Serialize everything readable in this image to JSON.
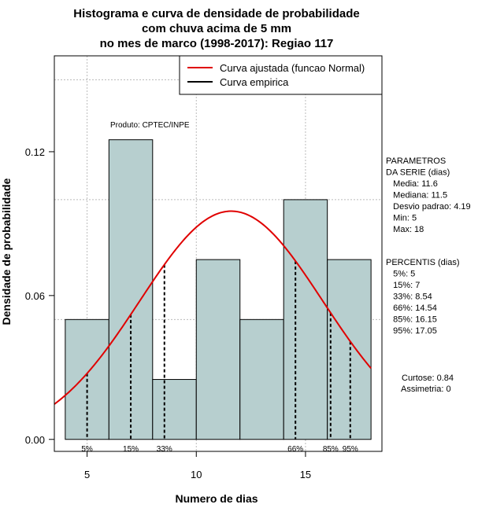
{
  "chart_data": {
    "type": "bar",
    "title_lines": [
      "Histograma e curva de densidade de probabilidade",
      "com chuva acima de 5 mm",
      "no mes de marco (1998-2017): Regiao 117"
    ],
    "xlabel": "Numero de dias",
    "ylabel": "Densidade de probabilidade",
    "xlim": [
      3.5,
      18.5
    ],
    "ylim": [
      -0.005,
      0.16
    ],
    "x_ticks": [
      5,
      10,
      15
    ],
    "y_ticks": [
      0.0,
      0.06,
      0.12
    ],
    "y_tick_labels": [
      "0.00",
      "0.06",
      "0.12"
    ],
    "grid_x": [
      5,
      10,
      15
    ],
    "grid_y": [
      0.05,
      0.1,
      0.15
    ],
    "bins": [
      {
        "start": 4,
        "end": 6,
        "density": 0.05
      },
      {
        "start": 6,
        "end": 8,
        "density": 0.125
      },
      {
        "start": 8,
        "end": 10,
        "density": 0.025
      },
      {
        "start": 10,
        "end": 12,
        "density": 0.075
      },
      {
        "start": 12,
        "end": 14,
        "density": 0.05
      },
      {
        "start": 14,
        "end": 16,
        "density": 0.1
      },
      {
        "start": 16,
        "end": 18,
        "density": 0.075
      }
    ],
    "normal_curve": {
      "mean": 11.6,
      "sd": 4.19,
      "x_range": [
        3.5,
        18
      ]
    },
    "percentile_lines": [
      {
        "label": "5%",
        "x": 5
      },
      {
        "label": "15%",
        "x": 7
      },
      {
        "label": "33%",
        "x": 8.54
      },
      {
        "label": "66%",
        "x": 14.54
      },
      {
        "label": "85%",
        "x": 16.15
      },
      {
        "label": "95%",
        "x": 17.05
      }
    ],
    "legend": [
      {
        "label": "Curva ajustada (funcao Normal)",
        "color": "#e00000"
      },
      {
        "label": "Curva empirica",
        "color": "#000000"
      }
    ],
    "legend_position": "top-right",
    "annotation": "Produto: CPTEC/INPE",
    "bar_color": "#b7cfcf",
    "curve_color": "#e00000"
  },
  "side_panel": {
    "params_lines": [
      "PARAMETROS",
      "DA SERIE (dias)",
      "   Media: 11.6",
      "   Mediana: 11.5",
      "   Desvio padrao: 4.19",
      "   Min: 5",
      "   Max: 18"
    ],
    "percentis_lines": [
      "PERCENTIS (dias)",
      "   5%: 5",
      "   15%: 7",
      "   33%: 8.54",
      "   66%: 14.54",
      "   85%: 16.15",
      "   95%: 17.05"
    ],
    "curtose": "Curtose: 0.84",
    "assimetria": "Assimetria: 0"
  }
}
